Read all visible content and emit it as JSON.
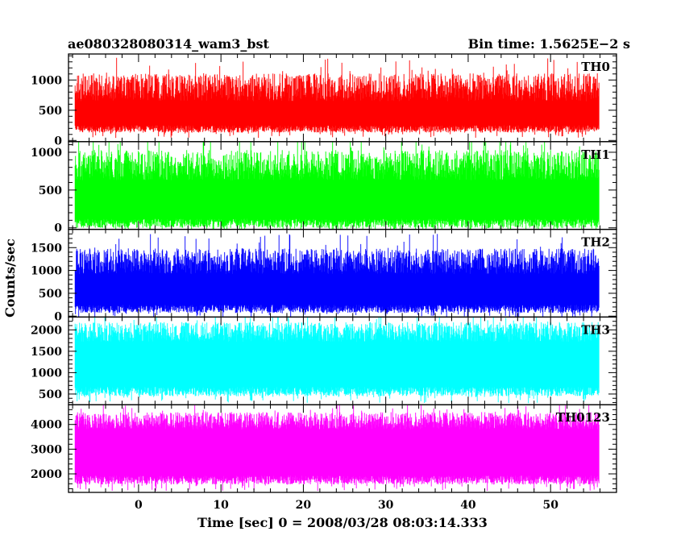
{
  "chart_data": {
    "type": "line",
    "title": "ae080328080314_wam3_bst",
    "subtitle": "Bin time: 1.5625E−2 s",
    "xlabel": "Time [sec] 0 = 2008/03/28 08:03:14.333",
    "ylabel": "Counts/sec",
    "xlim": [
      -8.5,
      58
    ],
    "x_range_data": [
      -7.7,
      55.9
    ],
    "x_ticks": [
      0,
      10,
      20,
      30,
      40,
      50
    ],
    "x_tick_labels": [
      "0",
      "10",
      "20",
      "30",
      "40",
      "50"
    ],
    "x_minor_step": 2,
    "grid": false,
    "panels": [
      {
        "label": "TH0",
        "color": "#ff0000",
        "ylim": [
          -20,
          1430
        ],
        "y_ticks": [
          0,
          500,
          1000
        ],
        "y_tick_labels": [
          "0",
          "500",
          "1000"
        ],
        "y_minor_step": 100,
        "mean": 520,
        "low_mean": 190,
        "low_spread": 60,
        "high_mean": 880,
        "high_spread": 230
      },
      {
        "label": "TH1",
        "color": "#00ff00",
        "ylim": [
          -20,
          1140
        ],
        "y_ticks": [
          0,
          500,
          1000
        ],
        "y_tick_labels": [
          "0",
          "500",
          "1000"
        ],
        "y_minor_step": 100,
        "mean": 450,
        "low_mean": 60,
        "low_spread": 60,
        "high_mean": 830,
        "high_spread": 200
      },
      {
        "label": "TH2",
        "color": "#0000ff",
        "ylim": [
          -20,
          1900
        ],
        "y_ticks": [
          0,
          500,
          1000,
          1500
        ],
        "y_tick_labels": [
          "0",
          "500",
          "1000",
          "1500"
        ],
        "y_minor_step": 100,
        "mean": 700,
        "low_mean": 160,
        "low_spread": 90,
        "high_mean": 1200,
        "high_spread": 280
      },
      {
        "label": "TH3",
        "color": "#00ffff",
        "ylim": [
          250,
          2300
        ],
        "y_ticks": [
          500,
          1000,
          1500,
          2000
        ],
        "y_tick_labels": [
          "500",
          "1000",
          "1500",
          "2000"
        ],
        "y_minor_step": 100,
        "mean": 1300,
        "low_mean": 560,
        "low_spread": 110,
        "high_mean": 1950,
        "high_spread": 230
      },
      {
        "label": "TH0123",
        "color": "#ff00ff",
        "ylim": [
          1250,
          4800
        ],
        "y_ticks": [
          2000,
          3000,
          4000
        ],
        "y_tick_labels": [
          "2000",
          "3000",
          "4000"
        ],
        "y_minor_step": 200,
        "mean": 2950,
        "low_mean": 1750,
        "low_spread": 180,
        "high_mean": 4150,
        "high_spread": 350
      }
    ]
  }
}
